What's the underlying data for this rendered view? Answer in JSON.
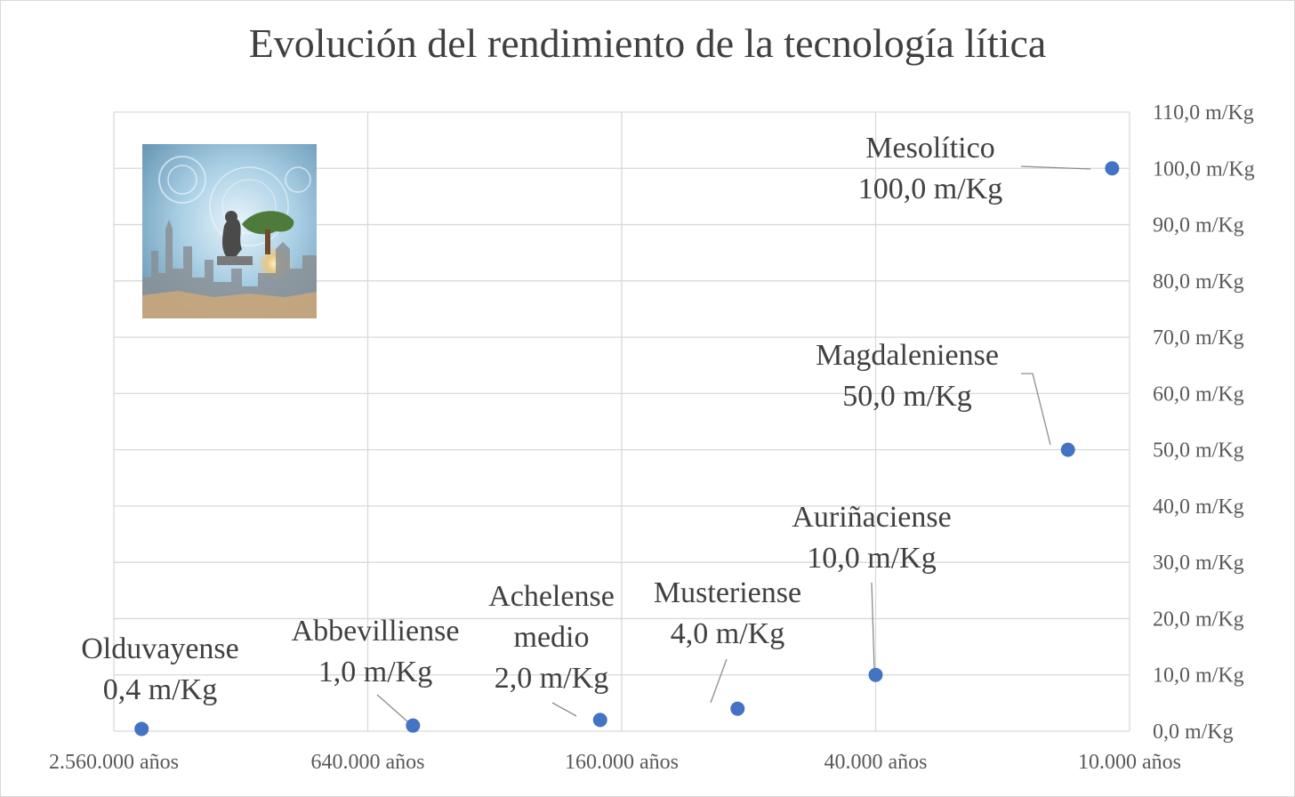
{
  "chart_data": {
    "type": "scatter",
    "title": "Evolución del rendimiento de la tecnología lítica",
    "xscale": "log",
    "xreversed": true,
    "xlim": [
      2560000,
      10000
    ],
    "x_ticks": [
      {
        "value": 2560000,
        "label": "2.560.000 años"
      },
      {
        "value": 640000,
        "label": "640.000 años"
      },
      {
        "value": 160000,
        "label": "160.000 años"
      },
      {
        "value": 40000,
        "label": "40.000 años"
      },
      {
        "value": 10000,
        "label": "10.000 años"
      }
    ],
    "ylim": [
      0,
      110
    ],
    "y_axis_position": "right",
    "y_ticks": [
      {
        "value": 0,
        "label": "0,0 m/Kg"
      },
      {
        "value": 10,
        "label": "10,0 m/Kg"
      },
      {
        "value": 20,
        "label": "20,0 m/Kg"
      },
      {
        "value": 30,
        "label": "30,0 m/Kg"
      },
      {
        "value": 40,
        "label": "40,0 m/Kg"
      },
      {
        "value": 50,
        "label": "50,0 m/Kg"
      },
      {
        "value": 60,
        "label": "60,0 m/Kg"
      },
      {
        "value": 70,
        "label": "70,0 m/Kg"
      },
      {
        "value": 80,
        "label": "80,0 m/Kg"
      },
      {
        "value": 90,
        "label": "90,0 m/Kg"
      },
      {
        "value": 100,
        "label": "100,0 m/Kg"
      },
      {
        "value": 110,
        "label": "110,0 m/Kg"
      }
    ],
    "grid": true,
    "points": [
      {
        "x": 2200000,
        "y": 0.4,
        "label_lines": [
          "Olduvayense",
          "0,4 m/Kg"
        ]
      },
      {
        "x": 500000,
        "y": 1.0,
        "label_lines": [
          "Abbevilliense",
          "1,0 m/Kg"
        ]
      },
      {
        "x": 180000,
        "y": 2.0,
        "label_lines": [
          "Achelense",
          "medio",
          "2,0 m/Kg"
        ]
      },
      {
        "x": 85000,
        "y": 4.0,
        "label_lines": [
          "Musteriense",
          "4,0 m/Kg"
        ]
      },
      {
        "x": 40000,
        "y": 10.0,
        "label_lines": [
          "Auriñaciense",
          "10,0 m/Kg"
        ]
      },
      {
        "x": 14000,
        "y": 50.0,
        "label_lines": [
          "Magdaleniense",
          "50,0 m/Kg"
        ]
      },
      {
        "x": 11000,
        "y": 100.0,
        "label_lines": [
          "Mesolítico",
          "100,0 m/Kg"
        ]
      }
    ],
    "point_color": "#4472c4"
  },
  "image": {
    "description_icon": "thinker-sculpture-city-image"
  }
}
